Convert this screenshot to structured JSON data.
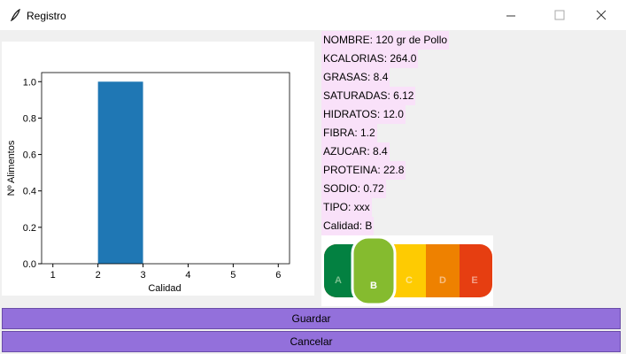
{
  "window": {
    "title": "Registro"
  },
  "chart_data": {
    "type": "histogram",
    "xlabel": "Calidad",
    "ylabel": "Nº Alimentos",
    "bins": [
      1,
      2,
      3,
      4,
      5,
      6
    ],
    "values": [
      0,
      1,
      0,
      0,
      0
    ],
    "color": "#1f77b4",
    "xlim": [
      0.75,
      6.25
    ],
    "xticks": [
      1,
      2,
      3,
      4,
      5,
      6
    ],
    "ylim": [
      0,
      1.05
    ],
    "yticks": [
      {
        "value": 0,
        "label": "0.0"
      },
      {
        "value": 0.2,
        "label": "0.2"
      },
      {
        "value": 0.4,
        "label": "0.4"
      },
      {
        "value": 0.6,
        "label": "0.6"
      },
      {
        "value": 0.8,
        "label": "0.8"
      },
      {
        "value": 1,
        "label": "1.0"
      }
    ]
  },
  "info": [
    "NOMBRE: 120 gr de Pollo",
    "KCALORIAS: 264.0",
    "GRASAS: 8.4",
    "SATURADAS: 6.12",
    "HIDRATOS: 12.0",
    "FIBRA: 1.2",
    "AZUCAR: 8.4",
    "PROTEINA: 22.8",
    "SODIO: 0.72",
    "TIPO: xxx",
    "Calidad: B"
  ],
  "nutriscore": [
    "A",
    "B",
    "C",
    "D",
    "E"
  ],
  "buttons": [
    "Guardar",
    "Cancelar"
  ]
}
